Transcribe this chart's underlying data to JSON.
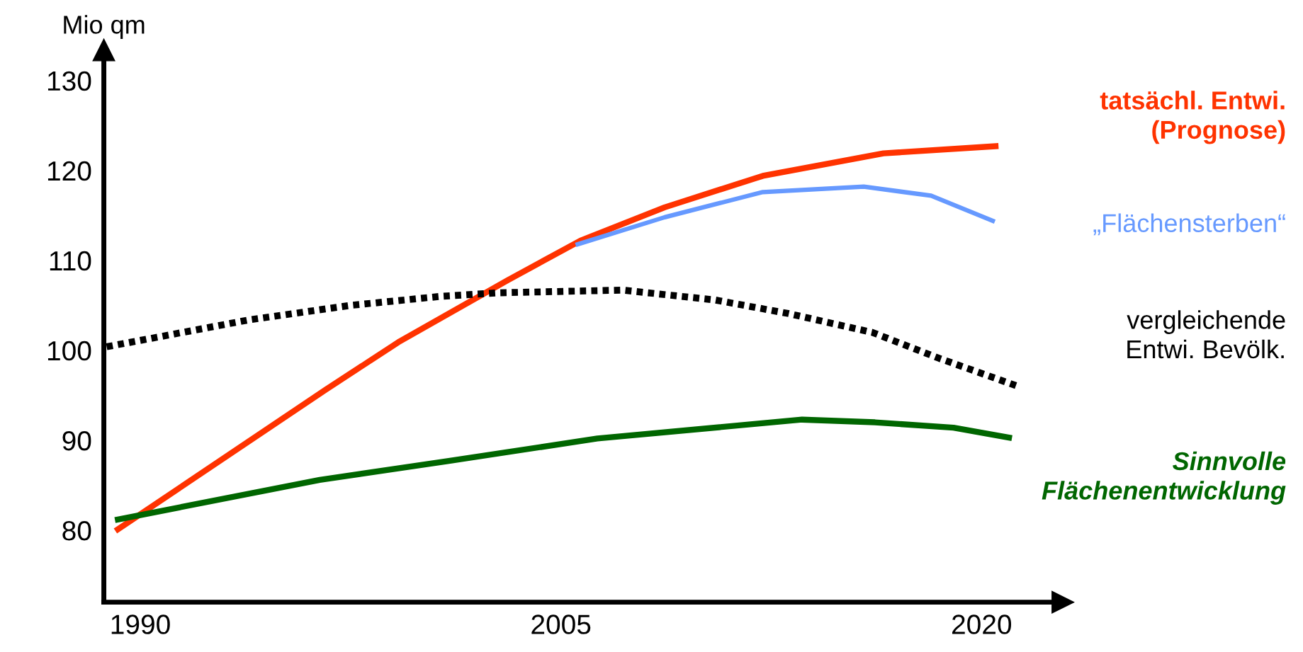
{
  "chart_data": {
    "type": "line",
    "ylabel": "Mio qm",
    "xlim": [
      1988.7,
      2022.9
    ],
    "ylim": [
      72,
      133.4
    ],
    "xticks": [
      1990,
      2005,
      2020
    ],
    "yticks": [
      80,
      90,
      100,
      110,
      120,
      130
    ],
    "grid": false,
    "legend": false,
    "series": [
      {
        "name": "tatsächl. Entwi.\n(Prognose)",
        "color": "#ff3300",
        "line_style": "solid",
        "x": [
          1989.2,
          1996.6,
          1999.2,
          2003.1,
          2005.7,
          2008.7,
          2012.2,
          2016.5,
          2020.5
        ],
        "values": [
          80.1,
          95.6,
          100.9,
          107.8,
          112.2,
          115.9,
          119.4,
          121.9,
          122.7
        ]
      },
      {
        "name": "„Flächensterben“",
        "color": "#6699ff",
        "line_style": "solid",
        "x": [
          2005.6,
          2008.7,
          2012.2,
          2015.8,
          2018.2,
          2020.4
        ],
        "values": [
          111.8,
          114.8,
          117.6,
          118.2,
          117.2,
          114.4
        ]
      },
      {
        "name": "vergleichende\nEntwi. Bevölk.",
        "color": "#000000",
        "line_style": "dotted",
        "x": [
          1988.8,
          1993.9,
          1997.5,
          2000.7,
          2002.8,
          2007.2,
          2010.5,
          2013.1,
          2016.1,
          2018.5,
          2021.3
        ],
        "values": [
          100.4,
          103.4,
          105.0,
          106.0,
          106.4,
          106.7,
          105.6,
          104.1,
          102.0,
          99.1,
          96.0
        ]
      },
      {
        "name": "Sinnvolle\nFlächenentwicklung",
        "color": "#006600",
        "line_style": "solid",
        "x": [
          1989.2,
          1996.4,
          2001.0,
          2006.3,
          2013.6,
          2016.2,
          2019.0,
          2020.98
        ],
        "values": [
          81.2,
          85.6,
          87.7,
          90.2,
          92.3,
          92.0,
          91.4,
          90.3
        ]
      }
    ]
  }
}
